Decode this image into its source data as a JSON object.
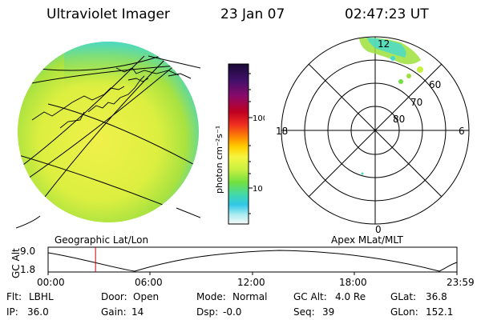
{
  "header": {
    "title": "Ultraviolet Imager",
    "date": "23 Jan 07",
    "time": "02:47:23 UT"
  },
  "colors": {
    "disk_yellow": "#e6ef3c",
    "disk_green": "#9ee03b",
    "disk_cyan": "#45d9d0",
    "line": "#000000",
    "time_marker": "#cc0000"
  },
  "colorbar": {
    "label": "photon cm⁻²s⁻¹",
    "ticks": [
      "100",
      "10"
    ],
    "colors": [
      "#1a0a35",
      "#40106a",
      "#8a0a6a",
      "#c00020",
      "#f03020",
      "#ff8a00",
      "#ffd000",
      "#f5f540",
      "#c8f040",
      "#70e040",
      "#40d8b0",
      "#30c8e8",
      "#a8ecf0",
      "#f8f8f8"
    ]
  },
  "left_panel": {
    "caption": "Geographic Lat/Lon"
  },
  "right_panel": {
    "caption": "Apex MLat/MLT",
    "mlt_labels": {
      "top": "12",
      "left": "18",
      "right": "6",
      "bottom": "0"
    },
    "lat_labels": [
      "60",
      "70",
      "80"
    ]
  },
  "timeline": {
    "axis_label": "GC Alt",
    "y_labels": [
      "9.0",
      "1.8"
    ],
    "x_labels": [
      "00:00",
      "06:00",
      "12:00",
      "18:00",
      "23:59"
    ],
    "marker_time_fraction": 0.116
  },
  "info": {
    "row1": [
      {
        "label": "Flt:",
        "value": "LBHL"
      },
      {
        "label": "Door:",
        "value": "Open"
      },
      {
        "label": "Mode:",
        "value": "Normal"
      },
      {
        "label": "GC Alt:",
        "value": "4.0 Re"
      },
      {
        "label": "GLat:",
        "value": "36.8"
      }
    ],
    "row2": [
      {
        "label": "IP:",
        "value": "36.0"
      },
      {
        "label": "Gain:",
        "value": "14"
      },
      {
        "label": "Dsp:",
        "value": "-0.0"
      },
      {
        "label": "Seq:",
        "value": "39"
      },
      {
        "label": "GLon:",
        "value": "152.1"
      }
    ]
  }
}
